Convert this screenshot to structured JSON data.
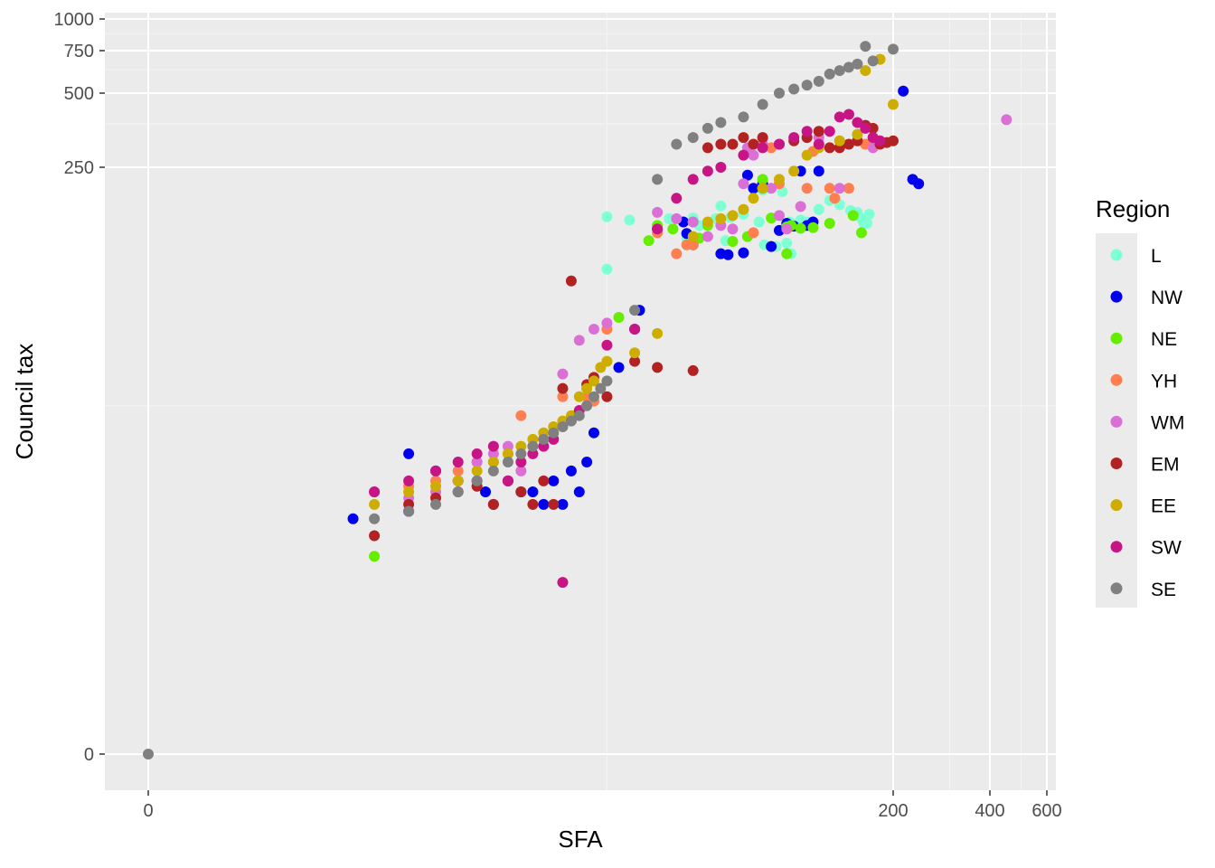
{
  "chart_data": {
    "type": "scatter",
    "xlabel": "SFA",
    "ylabel": "Council tax",
    "x_scale": "pseudo-log",
    "y_scale": "pseudo-log",
    "x_ticks": [
      {
        "value": 0,
        "label": "0"
      },
      {
        "value": 200,
        "label": "200"
      },
      {
        "value": 400,
        "label": "400"
      },
      {
        "value": 600,
        "label": "600"
      }
    ],
    "y_ticks": [
      {
        "value": 0,
        "label": "0"
      },
      {
        "value": 250,
        "label": "250"
      },
      {
        "value": 500,
        "label": "500"
      },
      {
        "value": 750,
        "label": "750"
      },
      {
        "value": 1000,
        "label": "1000"
      }
    ],
    "xlim": [
      -0.6,
      1.0
    ],
    "ylim": [
      -0.5,
      1000
    ],
    "grid": true,
    "legend": {
      "title": "Region",
      "placement": "right",
      "entries": [
        {
          "name": "L",
          "color": "#7FFFD4"
        },
        {
          "name": "NW",
          "color": "#0000EE"
        },
        {
          "name": "NE",
          "color": "#66EE00"
        },
        {
          "name": "YH",
          "color": "#FF7F50"
        },
        {
          "name": "WM",
          "color": "#DA70D6"
        },
        {
          "name": "EM",
          "color": "#B22222"
        },
        {
          "name": "EE",
          "color": "#CDAD00"
        },
        {
          "name": "SW",
          "color": "#C71585"
        },
        {
          "name": "SE",
          "color": "#808080"
        }
      ]
    },
    "series": [
      {
        "name": "L",
        "points": [
          [
            20,
            148
          ],
          [
            24,
            143
          ],
          [
            33,
            145
          ],
          [
            38,
            118
          ],
          [
            40,
            146
          ],
          [
            42,
            135
          ],
          [
            48,
            145
          ],
          [
            50,
            166
          ],
          [
            52,
            115
          ],
          [
            54,
            147
          ],
          [
            60,
            152
          ],
          [
            68,
            140
          ],
          [
            70,
            196
          ],
          [
            71,
            110
          ],
          [
            78,
            108
          ],
          [
            82,
            193
          ],
          [
            85,
            112
          ],
          [
            87,
            140
          ],
          [
            88,
            100
          ],
          [
            95,
            143
          ],
          [
            100,
            140
          ],
          [
            110,
            160
          ],
          [
            120,
            176
          ],
          [
            130,
            168
          ],
          [
            142,
            158
          ],
          [
            150,
            155
          ],
          [
            155,
            145
          ],
          [
            158,
            138
          ],
          [
            162,
            138
          ],
          [
            165,
            152
          ],
          [
            20,
            85
          ]
        ]
      },
      {
        "name": "NW",
        "points": [
          [
            2.5,
            6
          ],
          [
            4,
            6.5
          ],
          [
            4,
            12
          ],
          [
            5,
            10
          ],
          [
            6,
            9
          ],
          [
            7,
            9
          ],
          [
            7.5,
            8
          ],
          [
            8,
            7
          ],
          [
            9,
            9
          ],
          [
            10,
            8
          ],
          [
            11,
            8
          ],
          [
            12,
            7
          ],
          [
            13,
            9
          ],
          [
            14,
            7
          ],
          [
            15,
            10
          ],
          [
            16,
            8
          ],
          [
            17,
            11
          ],
          [
            18,
            15
          ],
          [
            22,
            30
          ],
          [
            25,
            45
          ],
          [
            26,
            55
          ],
          [
            30,
            130
          ],
          [
            37,
            140
          ],
          [
            38,
            124
          ],
          [
            40,
            110
          ],
          [
            50,
            100
          ],
          [
            53,
            99
          ],
          [
            60,
            101
          ],
          [
            62,
            230
          ],
          [
            65,
            200
          ],
          [
            70,
            210
          ],
          [
            75,
            108
          ],
          [
            80,
            128
          ],
          [
            85,
            138
          ],
          [
            90,
            134
          ],
          [
            95,
            240
          ],
          [
            100,
            135
          ],
          [
            105,
            140
          ],
          [
            110,
            240
          ],
          [
            215,
            510
          ],
          [
            230,
            220
          ],
          [
            240,
            210
          ]
        ]
      },
      {
        "name": "NE",
        "points": [
          [
            3,
            4
          ],
          [
            22,
            51
          ],
          [
            28,
            115
          ],
          [
            30,
            135
          ],
          [
            34,
            130
          ],
          [
            40,
            140
          ],
          [
            42,
            118
          ],
          [
            45,
            135
          ],
          [
            55,
            114
          ],
          [
            62,
            120
          ],
          [
            70,
            220
          ],
          [
            75,
            146
          ],
          [
            85,
            100
          ],
          [
            85,
            133
          ],
          [
            88,
            135
          ],
          [
            95,
            131
          ],
          [
            105,
            132
          ],
          [
            120,
            138
          ],
          [
            145,
            150
          ],
          [
            155,
            125
          ]
        ]
      },
      {
        "name": "YH",
        "points": [
          [
            3,
            8
          ],
          [
            4,
            8.5
          ],
          [
            5,
            9
          ],
          [
            6,
            10
          ],
          [
            7,
            11
          ],
          [
            8,
            11
          ],
          [
            9,
            12
          ],
          [
            10,
            18
          ],
          [
            14,
            22
          ],
          [
            17,
            22
          ],
          [
            18,
            21
          ],
          [
            20,
            45
          ],
          [
            30,
            125
          ],
          [
            35,
            100
          ],
          [
            38,
            110
          ],
          [
            40,
            110
          ],
          [
            65,
            125
          ],
          [
            70,
            200
          ],
          [
            75,
            300
          ],
          [
            80,
            210
          ],
          [
            100,
            200
          ],
          [
            105,
            290
          ],
          [
            120,
            200
          ],
          [
            125,
            180
          ],
          [
            140,
            200
          ],
          [
            160,
            310
          ]
        ]
      },
      {
        "name": "WM",
        "points": [
          [
            3,
            8
          ],
          [
            4,
            7.5
          ],
          [
            5,
            8
          ],
          [
            6,
            9
          ],
          [
            7,
            11
          ],
          [
            8,
            12
          ],
          [
            9,
            13
          ],
          [
            10,
            10
          ],
          [
            12,
            14
          ],
          [
            14,
            28
          ],
          [
            16,
            40
          ],
          [
            18,
            45
          ],
          [
            20,
            48
          ],
          [
            30,
            155
          ],
          [
            35,
            145
          ],
          [
            40,
            140
          ],
          [
            45,
            120
          ],
          [
            50,
            135
          ],
          [
            55,
            130
          ],
          [
            60,
            210
          ],
          [
            62,
            300
          ],
          [
            65,
            280
          ],
          [
            70,
            310
          ],
          [
            75,
            200
          ],
          [
            80,
            150
          ],
          [
            85,
            130
          ],
          [
            95,
            165
          ],
          [
            110,
            330
          ],
          [
            130,
            200
          ],
          [
            170,
            300
          ],
          [
            450,
            390
          ]
        ]
      },
      {
        "name": "EM",
        "points": [
          [
            3,
            5
          ],
          [
            4,
            7
          ],
          [
            5,
            7.5
          ],
          [
            6,
            8
          ],
          [
            7,
            8.5
          ],
          [
            8,
            7
          ],
          [
            9,
            9
          ],
          [
            10,
            8
          ],
          [
            11,
            7
          ],
          [
            12,
            9
          ],
          [
            13,
            7
          ],
          [
            14,
            24
          ],
          [
            15,
            75
          ],
          [
            17,
            25
          ],
          [
            18,
            27
          ],
          [
            20,
            22
          ],
          [
            25,
            32
          ],
          [
            30,
            30
          ],
          [
            40,
            29
          ],
          [
            45,
            300
          ],
          [
            50,
            310
          ],
          [
            55,
            310
          ],
          [
            60,
            330
          ],
          [
            65,
            310
          ],
          [
            70,
            330
          ],
          [
            80,
            310
          ],
          [
            90,
            320
          ],
          [
            100,
            330
          ],
          [
            110,
            350
          ],
          [
            120,
            300
          ],
          [
            130,
            300
          ],
          [
            140,
            310
          ],
          [
            150,
            320
          ],
          [
            160,
            370
          ],
          [
            170,
            360
          ],
          [
            180,
            310
          ],
          [
            190,
            315
          ],
          [
            200,
            320
          ]
        ]
      },
      {
        "name": "EE",
        "points": [
          [
            3,
            7
          ],
          [
            4,
            8
          ],
          [
            5,
            8.5
          ],
          [
            6,
            9
          ],
          [
            7,
            10
          ],
          [
            8,
            11
          ],
          [
            9,
            12
          ],
          [
            10,
            13
          ],
          [
            11,
            14
          ],
          [
            12,
            15
          ],
          [
            13,
            16
          ],
          [
            14,
            17
          ],
          [
            15,
            18
          ],
          [
            16,
            22
          ],
          [
            17,
            24
          ],
          [
            18,
            26
          ],
          [
            19,
            30
          ],
          [
            20,
            32
          ],
          [
            25,
            35
          ],
          [
            30,
            43
          ],
          [
            40,
            120
          ],
          [
            45,
            140
          ],
          [
            50,
            145
          ],
          [
            55,
            150
          ],
          [
            60,
            160
          ],
          [
            65,
            180
          ],
          [
            70,
            200
          ],
          [
            80,
            220
          ],
          [
            90,
            240
          ],
          [
            100,
            280
          ],
          [
            110,
            300
          ],
          [
            130,
            320
          ],
          [
            150,
            340
          ],
          [
            160,
            620
          ],
          [
            180,
            690
          ],
          [
            200,
            450
          ]
        ]
      },
      {
        "name": "SW",
        "points": [
          [
            3,
            8
          ],
          [
            4,
            9
          ],
          [
            5,
            10
          ],
          [
            6,
            11
          ],
          [
            7,
            12
          ],
          [
            8,
            13
          ],
          [
            9,
            9
          ],
          [
            10,
            11
          ],
          [
            11,
            12
          ],
          [
            12,
            13
          ],
          [
            13,
            14
          ],
          [
            14,
            3
          ],
          [
            16,
            19
          ],
          [
            20,
            38
          ],
          [
            25,
            45
          ],
          [
            30,
            130
          ],
          [
            35,
            180
          ],
          [
            40,
            220
          ],
          [
            45,
            240
          ],
          [
            50,
            250
          ],
          [
            60,
            280
          ],
          [
            70,
            300
          ],
          [
            80,
            310
          ],
          [
            90,
            330
          ],
          [
            100,
            350
          ],
          [
            110,
            310
          ],
          [
            120,
            350
          ],
          [
            130,
            400
          ],
          [
            140,
            410
          ],
          [
            150,
            380
          ],
          [
            160,
            360
          ],
          [
            170,
            330
          ],
          [
            180,
            320
          ]
        ]
      },
      {
        "name": "SE",
        "points": [
          [
            0,
            0
          ],
          [
            3,
            6
          ],
          [
            4,
            6.5
          ],
          [
            5,
            7
          ],
          [
            6,
            8
          ],
          [
            7,
            9
          ],
          [
            8,
            10
          ],
          [
            9,
            11
          ],
          [
            10,
            12
          ],
          [
            11,
            13
          ],
          [
            12,
            14
          ],
          [
            13,
            15
          ],
          [
            14,
            16
          ],
          [
            15,
            17
          ],
          [
            16,
            18
          ],
          [
            17,
            20
          ],
          [
            18,
            22
          ],
          [
            19,
            24
          ],
          [
            20,
            26
          ],
          [
            25,
            55
          ],
          [
            30,
            220
          ],
          [
            35,
            310
          ],
          [
            40,
            330
          ],
          [
            45,
            360
          ],
          [
            50,
            380
          ],
          [
            60,
            400
          ],
          [
            70,
            450
          ],
          [
            80,
            500
          ],
          [
            90,
            520
          ],
          [
            100,
            540
          ],
          [
            110,
            560
          ],
          [
            120,
            600
          ],
          [
            130,
            620
          ],
          [
            140,
            640
          ],
          [
            150,
            660
          ],
          [
            160,
            780
          ],
          [
            170,
            680
          ],
          [
            200,
            760
          ]
        ]
      }
    ]
  }
}
